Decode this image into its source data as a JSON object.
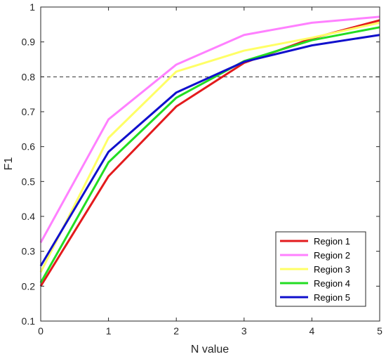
{
  "chart_data": {
    "type": "line",
    "xlabel": "N value",
    "ylabel": "F1",
    "xlim": [
      0,
      5
    ],
    "ylim": [
      0.1,
      1
    ],
    "xticks": [
      0,
      1,
      2,
      3,
      4,
      5
    ],
    "yticks": [
      0.1,
      0.2,
      0.3,
      0.4,
      0.5,
      0.6,
      0.7,
      0.8,
      0.9,
      1
    ],
    "x": [
      0,
      1,
      2,
      3,
      4,
      5
    ],
    "reference_line": {
      "y": 0.8,
      "style": "dashed"
    },
    "grid": false,
    "legend_position": "bottom-right",
    "series": [
      {
        "name": "Region 1",
        "color": "#e31a1c",
        "values": [
          0.2,
          0.515,
          0.715,
          0.84,
          0.91,
          0.962
        ]
      },
      {
        "name": "Region 2",
        "color": "#ff80ff",
        "values": [
          0.325,
          0.678,
          0.835,
          0.92,
          0.955,
          0.972
        ]
      },
      {
        "name": "Region 3",
        "color": "#ffff66",
        "values": [
          0.24,
          0.625,
          0.815,
          0.875,
          0.912,
          0.955
        ]
      },
      {
        "name": "Region 4",
        "color": "#22dd22",
        "values": [
          0.21,
          0.555,
          0.74,
          0.845,
          0.905,
          0.942
        ]
      },
      {
        "name": "Region 5",
        "color": "#1010cc",
        "values": [
          0.258,
          0.585,
          0.755,
          0.843,
          0.89,
          0.92
        ]
      }
    ]
  }
}
